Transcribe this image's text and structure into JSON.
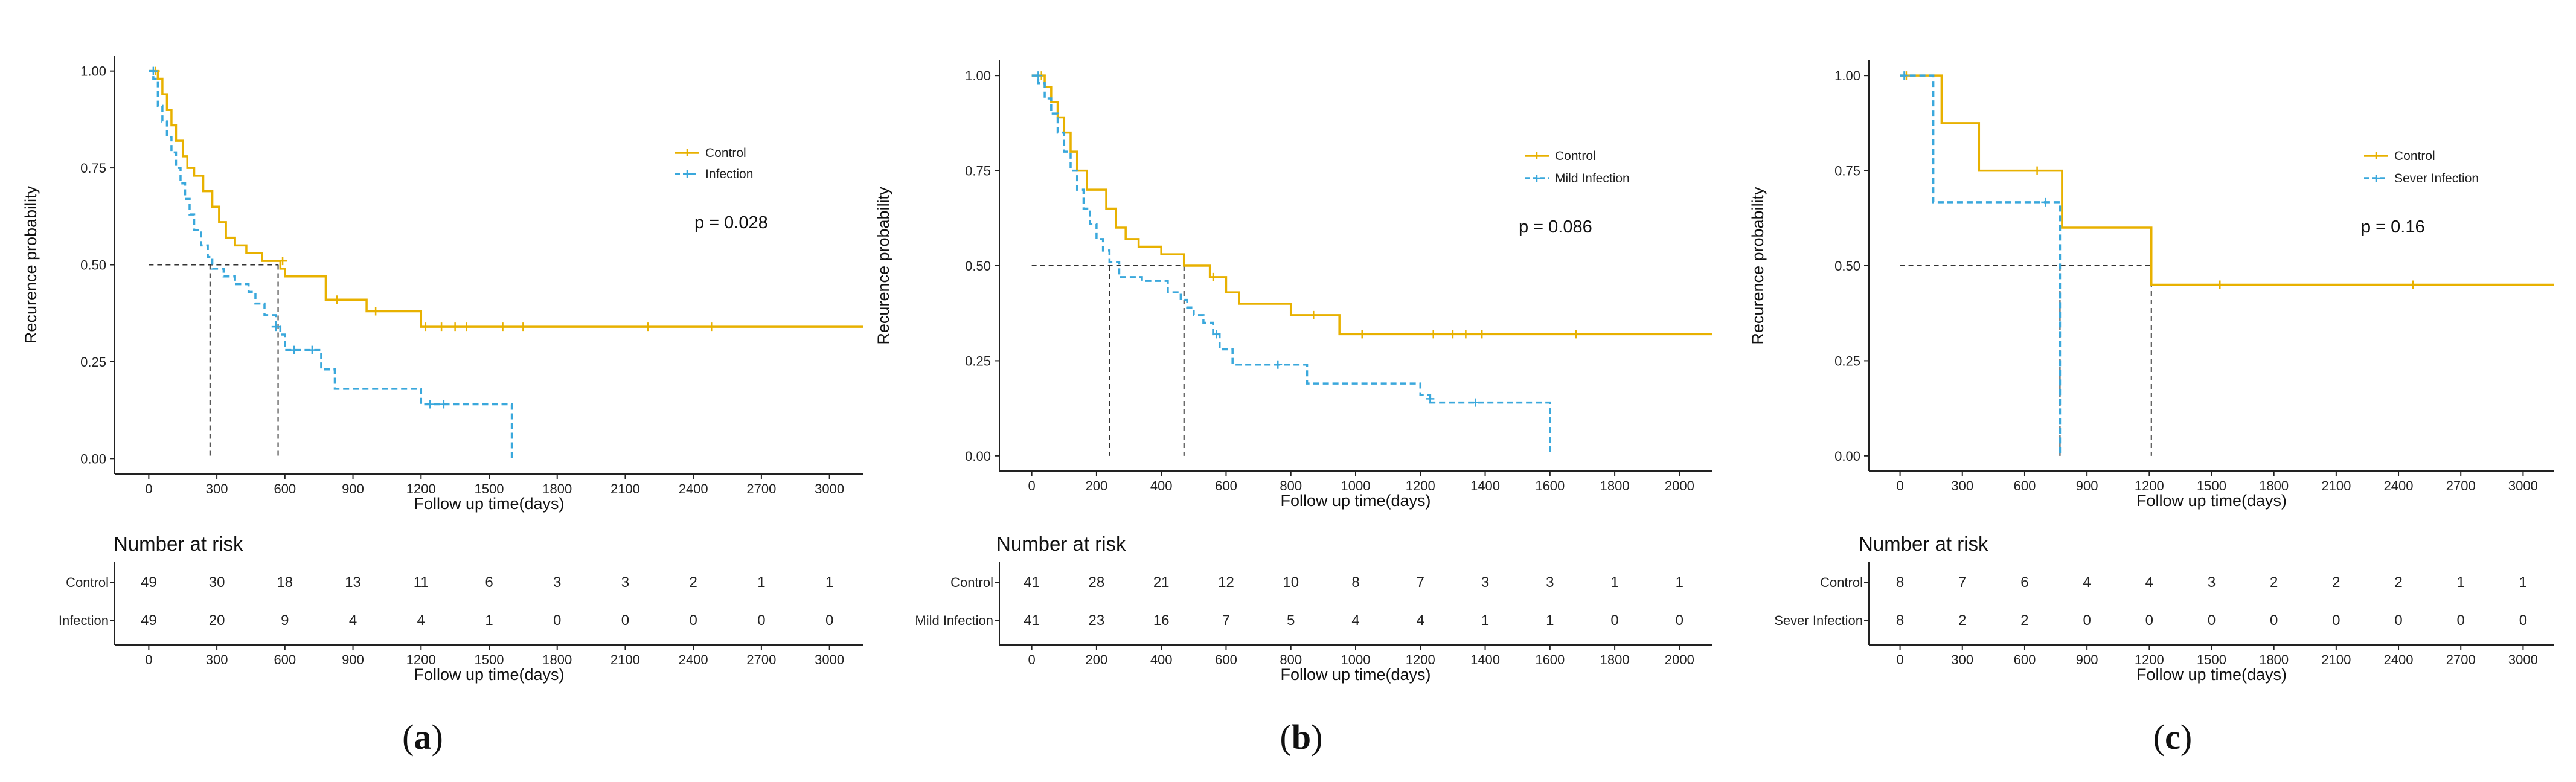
{
  "colors": {
    "control": "#e8b100",
    "infection": "#3aa8dc",
    "axis": "#222222",
    "median": "#333333"
  },
  "chart_data": [
    {
      "type": "line",
      "panel": "a",
      "xlabel": "Follow up time(days)",
      "ylabel": "Recurence probability",
      "xlim": [
        -150,
        3150
      ],
      "ylim": [
        -0.04,
        1.04
      ],
      "xticks": [
        0,
        300,
        600,
        900,
        1200,
        1500,
        1800,
        2100,
        2400,
        2700,
        3000
      ],
      "yticks": [
        "0.00",
        "0.25",
        "0.50",
        "0.75",
        "1.00"
      ],
      "pvalue": "p = 0.028",
      "medians": [
        270,
        570
      ],
      "series": [
        {
          "name": "Control",
          "style": "solid",
          "steps": [
            [
              0,
              1.0
            ],
            [
              40,
              0.98
            ],
            [
              60,
              0.94
            ],
            [
              80,
              0.9
            ],
            [
              100,
              0.86
            ],
            [
              120,
              0.82
            ],
            [
              150,
              0.78
            ],
            [
              170,
              0.75
            ],
            [
              200,
              0.73
            ],
            [
              240,
              0.69
            ],
            [
              280,
              0.65
            ],
            [
              310,
              0.61
            ],
            [
              340,
              0.57
            ],
            [
              380,
              0.55
            ],
            [
              430,
              0.53
            ],
            [
              500,
              0.51
            ],
            [
              580,
              0.49
            ],
            [
              600,
              0.47
            ],
            [
              780,
              0.41
            ],
            [
              960,
              0.38
            ],
            [
              1200,
              0.34
            ]
          ],
          "end": 3150,
          "censors": [
            [
              30,
              1.0
            ],
            [
              590,
              0.51
            ],
            [
              830,
              0.41
            ],
            [
              1000,
              0.38
            ],
            [
              1220,
              0.34
            ],
            [
              1290,
              0.34
            ],
            [
              1350,
              0.34
            ],
            [
              1400,
              0.34
            ],
            [
              1560,
              0.34
            ],
            [
              1650,
              0.34
            ],
            [
              2200,
              0.34
            ],
            [
              2480,
              0.34
            ]
          ]
        },
        {
          "name": "Infection",
          "style": "dashed",
          "steps": [
            [
              0,
              1.0
            ],
            [
              20,
              0.98
            ],
            [
              40,
              0.91
            ],
            [
              60,
              0.87
            ],
            [
              80,
              0.83
            ],
            [
              100,
              0.79
            ],
            [
              120,
              0.75
            ],
            [
              140,
              0.71
            ],
            [
              160,
              0.67
            ],
            [
              180,
              0.63
            ],
            [
              200,
              0.59
            ],
            [
              230,
              0.55
            ],
            [
              260,
              0.52
            ],
            [
              280,
              0.49
            ],
            [
              330,
              0.47
            ],
            [
              380,
              0.45
            ],
            [
              440,
              0.43
            ],
            [
              470,
              0.4
            ],
            [
              510,
              0.37
            ],
            [
              560,
              0.34
            ],
            [
              580,
              0.32
            ],
            [
              600,
              0.28
            ],
            [
              760,
              0.23
            ],
            [
              820,
              0.18
            ],
            [
              1200,
              0.14
            ],
            [
              1600,
              0.0
            ]
          ],
          "end": 1600,
          "censors": [
            [
              20,
              1.0
            ],
            [
              560,
              0.34
            ],
            [
              640,
              0.28
            ],
            [
              720,
              0.28
            ],
            [
              1240,
              0.14
            ],
            [
              1300,
              0.14
            ]
          ]
        }
      ],
      "risk": {
        "xticks": [
          0,
          300,
          600,
          900,
          1200,
          1500,
          1800,
          2100,
          2400,
          2700,
          3000
        ],
        "rows": [
          {
            "label": "Control",
            "values": [
              49,
              30,
              18,
              13,
              11,
              6,
              3,
              3,
              2,
              1,
              1
            ]
          },
          {
            "label": "Infection",
            "values": [
              49,
              20,
              9,
              4,
              4,
              1,
              0,
              0,
              0,
              0,
              0
            ]
          }
        ]
      }
    },
    {
      "type": "line",
      "panel": "b",
      "xlabel": "Follow up time(days)",
      "ylabel": "Recurence probability",
      "xlim": [
        -100,
        2100
      ],
      "ylim": [
        -0.04,
        1.04
      ],
      "xticks": [
        0,
        200,
        400,
        600,
        800,
        1000,
        1200,
        1400,
        1600,
        1800,
        2000
      ],
      "yticks": [
        "0.00",
        "0.25",
        "0.50",
        "0.75",
        "1.00"
      ],
      "pvalue": "p = 0.086",
      "medians": [
        240,
        470
      ],
      "series": [
        {
          "name": "Control",
          "style": "solid",
          "steps": [
            [
              0,
              1.0
            ],
            [
              40,
              0.97
            ],
            [
              60,
              0.93
            ],
            [
              80,
              0.89
            ],
            [
              100,
              0.85
            ],
            [
              120,
              0.8
            ],
            [
              140,
              0.75
            ],
            [
              170,
              0.7
            ],
            [
              230,
              0.65
            ],
            [
              260,
              0.6
            ],
            [
              290,
              0.57
            ],
            [
              330,
              0.55
            ],
            [
              400,
              0.53
            ],
            [
              470,
              0.5
            ],
            [
              550,
              0.47
            ],
            [
              600,
              0.43
            ],
            [
              640,
              0.4
            ],
            [
              800,
              0.37
            ],
            [
              950,
              0.32
            ]
          ],
          "end": 2100,
          "censors": [
            [
              30,
              1.0
            ],
            [
              560,
              0.47
            ],
            [
              870,
              0.37
            ],
            [
              1020,
              0.32
            ],
            [
              1240,
              0.32
            ],
            [
              1300,
              0.32
            ],
            [
              1340,
              0.32
            ],
            [
              1390,
              0.32
            ],
            [
              1680,
              0.32
            ]
          ]
        },
        {
          "name": "Mild Infection",
          "style": "dashed",
          "steps": [
            [
              0,
              1.0
            ],
            [
              20,
              0.98
            ],
            [
              40,
              0.94
            ],
            [
              60,
              0.9
            ],
            [
              80,
              0.85
            ],
            [
              100,
              0.8
            ],
            [
              120,
              0.75
            ],
            [
              140,
              0.7
            ],
            [
              160,
              0.65
            ],
            [
              180,
              0.61
            ],
            [
              200,
              0.57
            ],
            [
              220,
              0.54
            ],
            [
              240,
              0.51
            ],
            [
              270,
              0.47
            ],
            [
              340,
              0.46
            ],
            [
              420,
              0.43
            ],
            [
              460,
              0.41
            ],
            [
              480,
              0.39
            ],
            [
              500,
              0.37
            ],
            [
              530,
              0.35
            ],
            [
              560,
              0.32
            ],
            [
              580,
              0.28
            ],
            [
              620,
              0.24
            ],
            [
              850,
              0.19
            ],
            [
              1200,
              0.16
            ],
            [
              1230,
              0.14
            ],
            [
              1600,
              0.0
            ]
          ],
          "end": 1600,
          "censors": [
            [
              20,
              1.0
            ],
            [
              570,
              0.32
            ],
            [
              760,
              0.24
            ],
            [
              1230,
              0.15
            ],
            [
              1370,
              0.14
            ]
          ]
        }
      ],
      "risk": {
        "xticks": [
          0,
          200,
          400,
          600,
          800,
          1000,
          1200,
          1400,
          1600,
          1800,
          2000
        ],
        "rows": [
          {
            "label": "Control",
            "values": [
              41,
              28,
              21,
              12,
              10,
              8,
              7,
              3,
              3,
              1,
              1
            ]
          },
          {
            "label": "Mild Infection",
            "values": [
              41,
              23,
              16,
              7,
              5,
              4,
              4,
              1,
              1,
              0,
              0
            ]
          }
        ]
      }
    },
    {
      "type": "line",
      "panel": "c",
      "xlabel": "Follow up time(days)",
      "ylabel": "Recurence probability",
      "xlim": [
        -150,
        3150
      ],
      "ylim": [
        -0.04,
        1.04
      ],
      "xticks": [
        0,
        300,
        600,
        900,
        1200,
        1500,
        1800,
        2100,
        2400,
        2700,
        3000
      ],
      "yticks": [
        "0.00",
        "0.25",
        "0.50",
        "0.75",
        "1.00"
      ],
      "pvalue": "p = 0.16",
      "medians": [
        770,
        1210
      ],
      "series": [
        {
          "name": "Control",
          "style": "solid",
          "steps": [
            [
              0,
              1.0
            ],
            [
              200,
              0.875
            ],
            [
              380,
              0.75
            ],
            [
              780,
              0.6
            ],
            [
              1210,
              0.45
            ]
          ],
          "end": 3150,
          "censors": [
            [
              30,
              1.0
            ],
            [
              660,
              0.75
            ],
            [
              1540,
              0.45
            ],
            [
              2470,
              0.45
            ]
          ]
        },
        {
          "name": "Sever Infection",
          "style": "dashed",
          "steps": [
            [
              0,
              1.0
            ],
            [
              160,
              0.667
            ],
            [
              770,
              0.0
            ]
          ],
          "end": 770,
          "censors": [
            [
              20,
              1.0
            ],
            [
              700,
              0.667
            ]
          ]
        }
      ],
      "risk": {
        "xticks": [
          0,
          300,
          600,
          900,
          1200,
          1500,
          1800,
          2100,
          2400,
          2700,
          3000
        ],
        "rows": [
          {
            "label": "Control",
            "values": [
              8,
              7,
              6,
              4,
              4,
              3,
              2,
              2,
              2,
              1,
              1
            ]
          },
          {
            "label": "Sever Infection",
            "values": [
              8,
              2,
              2,
              0,
              0,
              0,
              0,
              0,
              0,
              0,
              0
            ]
          }
        ]
      }
    }
  ],
  "labels": {
    "risk_title": "Number at risk",
    "panel_a": "a",
    "panel_b": "b",
    "panel_c": "c",
    "paren_open": "(",
    "paren_close": ")"
  }
}
